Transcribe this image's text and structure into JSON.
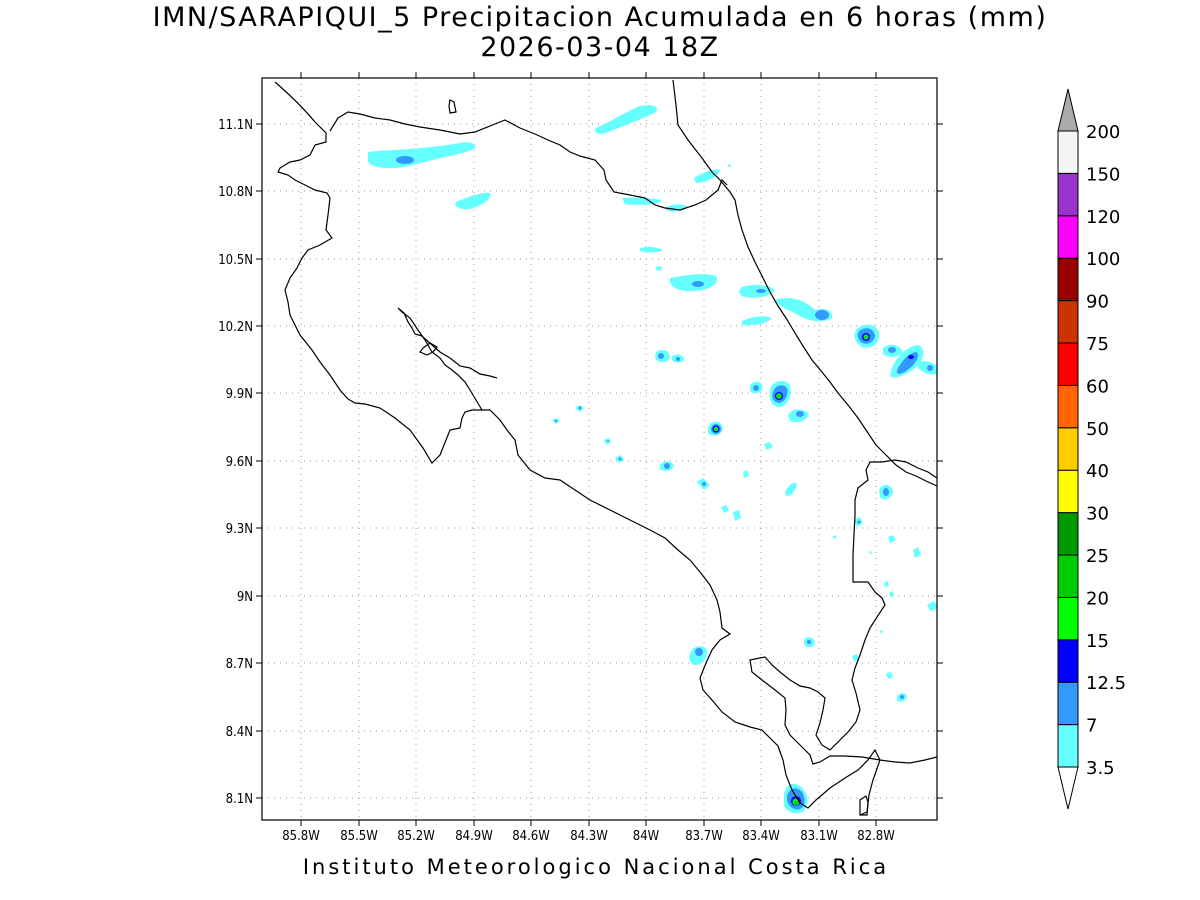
{
  "title": {
    "line1": "IMN/SARAPIQUI_5 Precipitacion Acumulada en 6 horas (mm)",
    "line2": "2026-03-04 18Z"
  },
  "footer": "Instituto Meteorologico Nacional Costa Rica",
  "map": {
    "lon_range": [
      -86.08,
      -82.55
    ],
    "lat_range": [
      8.0,
      11.3
    ],
    "lon_ticks": [
      "85.8W",
      "85.5W",
      "85.2W",
      "84.9W",
      "84.6W",
      "84.3W",
      "84W",
      "83.7W",
      "83.4W",
      "83.1W",
      "82.8W"
    ],
    "lat_ticks": [
      "11.1N",
      "10.8N",
      "10.5N",
      "10.2N",
      "9.9N",
      "9.6N",
      "9.3N",
      "9N",
      "8.7N",
      "8.4N",
      "8.1N"
    ],
    "grid": "dotted"
  },
  "colorbar": {
    "labels": [
      "3.5",
      "7",
      "12.5",
      "15",
      "20",
      "25",
      "30",
      "40",
      "50",
      "60",
      "75",
      "90",
      "100",
      "120",
      "150",
      "200"
    ],
    "colors": [
      "#66ffff",
      "#3399ff",
      "#0000ff",
      "#00ff00",
      "#00cc00",
      "#009900",
      "#ffff00",
      "#ffcc00",
      "#ff6600",
      "#ff0000",
      "#cc3300",
      "#990000",
      "#ff00ff",
      "#9933cc",
      "#f5f5f5",
      "#aaaaaa"
    ],
    "triangle_bottom_color": "#ffffff",
    "triangle_top_color": "#aaaaaa"
  },
  "precip_levels_colors": {
    "3.5": "#66ffff",
    "7": "#3399ff",
    "12.5": "#0000ff",
    "15": "#00ff00",
    "20": "#00cc00"
  }
}
